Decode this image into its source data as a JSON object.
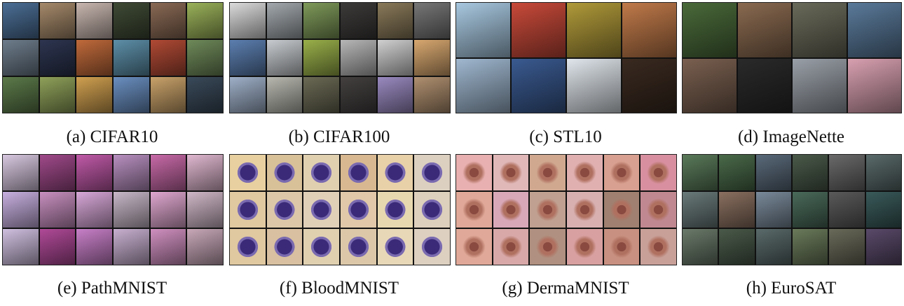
{
  "captions": {
    "a": "(a) CIFAR10",
    "b": "(b) CIFAR100",
    "c": "(c) STL10",
    "d": "(d) ImageNette",
    "e": "(e) PathMNIST",
    "f": "(f) BloodMNIST",
    "g": "(g) DermaMNIST",
    "h": "(h) EuroSAT"
  },
  "palettes": {
    "cifar10": [
      "#4c6f96",
      "#a68a6b",
      "#c9b7b0",
      "#3f4a35",
      "#8a6a55",
      "#9bb25a",
      "#6e7d8c",
      "#2d3550",
      "#c06a3b",
      "#5d8fa8",
      "#b04a35",
      "#6f8a5a",
      "#5c7a4a",
      "#8fa15a",
      "#d0a050",
      "#6a8fc0",
      "#c9a26a",
      "#3a4a5a"
    ],
    "cifar100": [
      "#dcdcdc",
      "#a3a9ae",
      "#7f9a5a",
      "#3d3b3a",
      "#8a7a5a",
      "#777777",
      "#5c7fb0",
      "#c8ccd0",
      "#9ab04a",
      "#b7b7b7",
      "#d0d0d0",
      "#d8a870",
      "#9fb0c8",
      "#b8b8b0",
      "#6b6a55",
      "#444040",
      "#9a8ac0",
      "#b09070"
    ],
    "stl10": [
      "#a8c8e0",
      "#c84a3a",
      "#b09a3a",
      "#c07a4a",
      "#a0b8d0",
      "#3a5a90",
      "#e0e6ec",
      "#3a2a20"
    ],
    "imagenette": [
      "#4a6a3a",
      "#8a6a50",
      "#6a6a5a",
      "#5a7a9a",
      "#7a6050",
      "#2a2a2a",
      "#9aa0a8",
      "#d8a0b0"
    ],
    "pathmnist": [
      "#d8c8e0",
      "#a04a8a",
      "#c05aa8",
      "#b890c0",
      "#c86aa8",
      "#e0b8d0",
      "#c8b0e0",
      "#c890c0",
      "#d8a8d8",
      "#c8b8c8",
      "#e0a8d0",
      "#d0b8c8",
      "#d0c0e0",
      "#b04a98",
      "#c880c8",
      "#c8b0d0",
      "#d090c0",
      "#c8a8b8"
    ],
    "bloodmnist": [
      "#e8d0a0",
      "#d8c098",
      "#e0d0b0",
      "#d8b890",
      "#e8d0a8",
      "#dcd0c0",
      "#e0c8a0",
      "#dcc8a8",
      "#e0d0b8",
      "#e0c8a8",
      "#e8d8b0",
      "#ddd0bc",
      "#e0c8a0",
      "#d8c0a0",
      "#e0d0b0",
      "#dcc8a8",
      "#e8d8b8",
      "#ddd0c0"
    ],
    "dermamnist": [
      "#e8b0b0",
      "#e0b8b8",
      "#d0a890",
      "#e0b0b0",
      "#d8a090",
      "#d890a0",
      "#e0a898",
      "#d8a8b8",
      "#c0a090",
      "#d8b0b0",
      "#a08070",
      "#c08890",
      "#e0a898",
      "#d8a8a8",
      "#b09080",
      "#d8a0a0",
      "#c89080",
      "#c8a098"
    ],
    "eurosat": [
      "#5a7a5a",
      "#4a6a4a",
      "#5a6a7a",
      "#4a5a4a",
      "#6a6a6a",
      "#5a6a6a",
      "#6a7a7a",
      "#8a7060",
      "#7a8a9a",
      "#4a6a5a",
      "#5a5a5a",
      "#3a5a5a",
      "#6a7a6a",
      "#4a5a4a",
      "#5a6a6a",
      "#6a7a5a",
      "#6a6a5a",
      "#5a4a6a"
    ]
  }
}
